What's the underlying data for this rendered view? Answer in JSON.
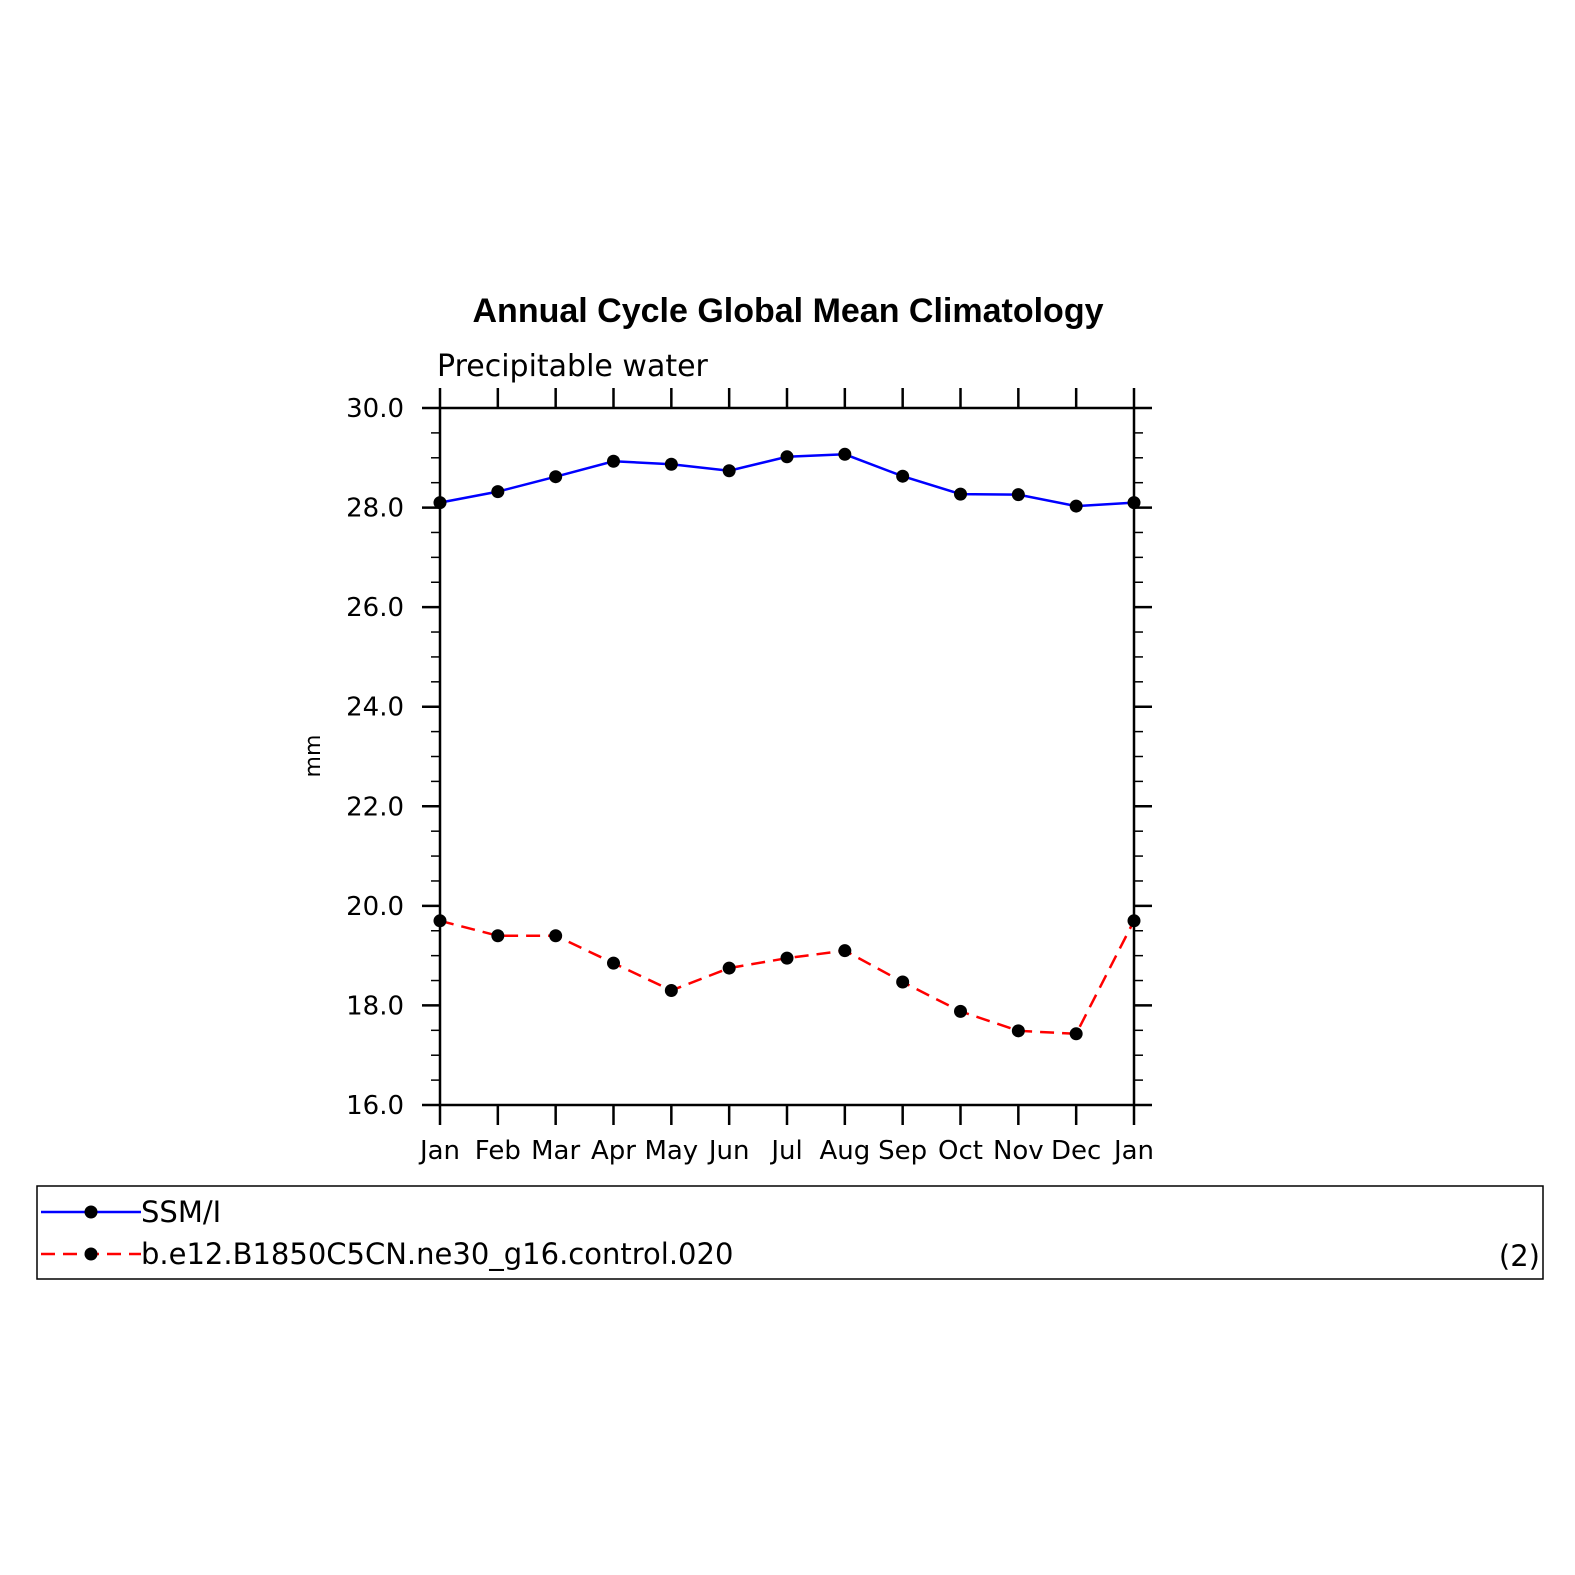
{
  "chart_data": {
    "type": "line",
    "title": "Annual Cycle Global Mean Climatology",
    "subtitle": "Precipitable water",
    "xlabel": "",
    "ylabel": "mm",
    "categories": [
      "Jan",
      "Feb",
      "Mar",
      "Apr",
      "May",
      "Jun",
      "Jul",
      "Aug",
      "Sep",
      "Oct",
      "Nov",
      "Dec",
      "Jan"
    ],
    "ylim": [
      16.0,
      30.0
    ],
    "yticks": [
      "16.0",
      "18.0",
      "20.0",
      "22.0",
      "24.0",
      "26.0",
      "28.0",
      "30.0"
    ],
    "grid": false,
    "legend_position": "bottom",
    "legend_note": "(2)",
    "series": [
      {
        "name": "SSM/I",
        "color": "#0000ff",
        "line_style": "solid",
        "values": [
          28.1,
          28.32,
          28.62,
          28.93,
          28.87,
          28.74,
          29.02,
          29.07,
          28.63,
          28.27,
          28.26,
          28.03,
          28.1
        ]
      },
      {
        "name": "b.e12.B1850C5CN.ne30_g16.control.020",
        "color": "#ff0000",
        "line_style": "dashed",
        "values": [
          19.7,
          19.4,
          19.4,
          18.85,
          18.3,
          18.75,
          18.95,
          19.1,
          18.47,
          17.88,
          17.49,
          17.43,
          19.7
        ]
      }
    ]
  }
}
